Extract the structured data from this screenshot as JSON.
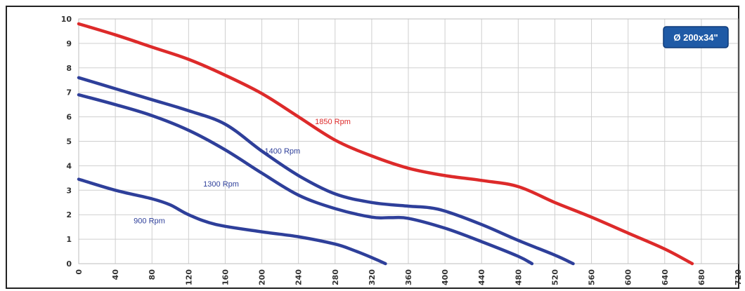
{
  "chart_data": {
    "type": "line",
    "title": "",
    "xlabel": "",
    "ylabel": "",
    "xlim": [
      0,
      720
    ],
    "ylim": [
      0,
      10
    ],
    "x_ticks": [
      "0",
      "40",
      "80",
      "120",
      "160",
      "200",
      "240",
      "280",
      "320",
      "360",
      "400",
      "440",
      "480",
      "520",
      "560",
      "600",
      "640",
      "680",
      "720"
    ],
    "y_ticks": [
      "0",
      "1",
      "2",
      "3",
      "4",
      "5",
      "6",
      "7",
      "8",
      "9",
      "10"
    ],
    "grid": true,
    "legend_box": {
      "text": "Ø 200x34\"",
      "position": "top-right",
      "color": "#1f5aa6"
    },
    "series": [
      {
        "name": "1850 Rpm",
        "color": "#dd2a2a",
        "points": [
          [
            0,
            9.8
          ],
          [
            40,
            9.35
          ],
          [
            80,
            8.85
          ],
          [
            120,
            8.35
          ],
          [
            160,
            7.7
          ],
          [
            200,
            6.95
          ],
          [
            240,
            6.0
          ],
          [
            280,
            5.05
          ],
          [
            320,
            4.4
          ],
          [
            360,
            3.9
          ],
          [
            400,
            3.6
          ],
          [
            440,
            3.4
          ],
          [
            480,
            3.15
          ],
          [
            520,
            2.5
          ],
          [
            560,
            1.9
          ],
          [
            600,
            1.25
          ],
          [
            640,
            0.6
          ],
          [
            670,
            0.0
          ]
        ]
      },
      {
        "name": "1400 Rpm",
        "color": "#2e3f9a",
        "points": [
          [
            0,
            7.6
          ],
          [
            40,
            7.15
          ],
          [
            80,
            6.7
          ],
          [
            120,
            6.25
          ],
          [
            160,
            5.7
          ],
          [
            200,
            4.6
          ],
          [
            240,
            3.6
          ],
          [
            280,
            2.85
          ],
          [
            320,
            2.5
          ],
          [
            360,
            2.35
          ],
          [
            380,
            2.3
          ],
          [
            400,
            2.15
          ],
          [
            440,
            1.6
          ],
          [
            480,
            0.95
          ],
          [
            520,
            0.35
          ],
          [
            540,
            0.0
          ]
        ]
      },
      {
        "name": "1300 Rpm",
        "color": "#2e3f9a",
        "points": [
          [
            0,
            6.9
          ],
          [
            40,
            6.5
          ],
          [
            80,
            6.05
          ],
          [
            120,
            5.45
          ],
          [
            160,
            4.65
          ],
          [
            200,
            3.7
          ],
          [
            240,
            2.8
          ],
          [
            280,
            2.25
          ],
          [
            320,
            1.9
          ],
          [
            340,
            1.88
          ],
          [
            360,
            1.85
          ],
          [
            400,
            1.45
          ],
          [
            440,
            0.9
          ],
          [
            480,
            0.3
          ],
          [
            495,
            0.0
          ]
        ]
      },
      {
        "name": "900 Rpm",
        "color": "#2e3f9a",
        "points": [
          [
            0,
            3.45
          ],
          [
            40,
            3.0
          ],
          [
            80,
            2.65
          ],
          [
            100,
            2.4
          ],
          [
            120,
            2.0
          ],
          [
            150,
            1.6
          ],
          [
            200,
            1.3
          ],
          [
            240,
            1.1
          ],
          [
            280,
            0.8
          ],
          [
            300,
            0.55
          ],
          [
            320,
            0.25
          ],
          [
            335,
            0.0
          ]
        ]
      }
    ],
    "annotations": [
      {
        "text": "1850 Rpm",
        "x": 258,
        "y": 5.7,
        "color": "#dd2a2a"
      },
      {
        "text": "1400 Rpm",
        "x": 203,
        "y": 4.5,
        "color": "#2e3f9a"
      },
      {
        "text": "1300 Rpm",
        "x": 136,
        "y": 3.15,
        "color": "#2e3f9a"
      },
      {
        "text": "900 Rpm",
        "x": 60,
        "y": 1.65,
        "color": "#2e3f9a"
      }
    ]
  }
}
